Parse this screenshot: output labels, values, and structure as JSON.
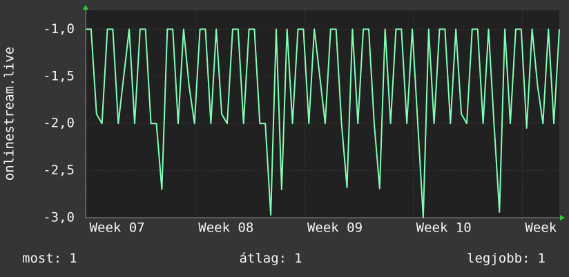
{
  "chart_data": {
    "type": "line",
    "ylabel": "onlinestream.live",
    "color": "#80ffb4",
    "x": [
      6.99,
      7.04,
      7.09,
      7.14,
      7.19,
      7.24,
      7.29,
      7.34,
      7.39,
      7.44,
      7.49,
      7.54,
      7.59,
      7.64,
      7.69,
      7.74,
      7.79,
      7.84,
      7.89,
      7.94,
      7.99,
      8.04,
      8.09,
      8.14,
      8.19,
      8.24,
      8.29,
      8.34,
      8.39,
      8.44,
      8.49,
      8.54,
      8.59,
      8.64,
      8.69,
      8.74,
      8.79,
      8.84,
      8.89,
      8.94,
      8.99,
      9.04,
      9.09,
      9.14,
      9.19,
      9.24,
      9.29,
      9.34,
      9.39,
      9.44,
      9.49,
      9.54,
      9.59,
      9.64,
      9.69,
      9.74,
      9.79,
      9.84,
      9.89,
      9.94,
      9.99,
      10.04,
      10.09,
      10.14,
      10.19,
      10.24,
      10.29,
      10.34,
      10.39,
      10.44,
      10.49,
      10.54,
      10.59,
      10.64,
      10.69,
      10.74,
      10.79,
      10.84,
      10.89,
      10.94,
      10.99,
      11.04,
      11.09,
      11.14,
      11.19,
      11.24,
      11.29,
      11.34
    ],
    "values": [
      -1,
      -1,
      -1.9,
      -2,
      -1,
      -1,
      -2,
      -1.5,
      -1,
      -2,
      -1,
      -1,
      -2,
      -2,
      -2.7,
      -1,
      -1,
      -2,
      -1,
      -1.6,
      -2,
      -1,
      -1,
      -2,
      -1,
      -1.9,
      -2,
      -1,
      -1,
      -2,
      -1,
      -1,
      -2,
      -2,
      -2.97,
      -1,
      -2.7,
      -1,
      -2,
      -1,
      -1,
      -2,
      -1,
      -1.5,
      -2,
      -1,
      -1,
      -2,
      -2.68,
      -1,
      -2,
      -1,
      -1,
      -2,
      -2.69,
      -1,
      -2,
      -1,
      -1,
      -2,
      -1,
      -2,
      -3,
      -1,
      -2,
      -1,
      -1,
      -2,
      -1,
      -1.9,
      -2,
      -1,
      -1,
      -2,
      -1,
      -2,
      -2.94,
      -1,
      -2,
      -1,
      -1,
      -2.05,
      -1,
      -1.6,
      -2,
      -1,
      -2,
      -1
    ],
    "xlim": [
      6.99,
      11.34
    ],
    "xticks": [
      {
        "value": 7,
        "label": "Week 07"
      },
      {
        "value": 8,
        "label": "Week 08"
      },
      {
        "value": 9,
        "label": "Week 09"
      },
      {
        "value": 10,
        "label": "Week 10"
      },
      {
        "value": 11,
        "label": "Week"
      }
    ],
    "ylim": [
      -3,
      -0.8
    ],
    "yticks": [
      {
        "value": -3,
        "label": "-3,0"
      },
      {
        "value": -2.5,
        "label": "-2,5"
      },
      {
        "value": -2,
        "label": "-2,0"
      },
      {
        "value": -1.5,
        "label": "-1,5"
      },
      {
        "value": -1,
        "label": "-1,0"
      }
    ],
    "grid": true,
    "footer": [
      {
        "label": "most:",
        "value": 1
      },
      {
        "label": "átlag:",
        "value": 1
      },
      {
        "label": "legjobb:",
        "value": 1
      }
    ]
  }
}
